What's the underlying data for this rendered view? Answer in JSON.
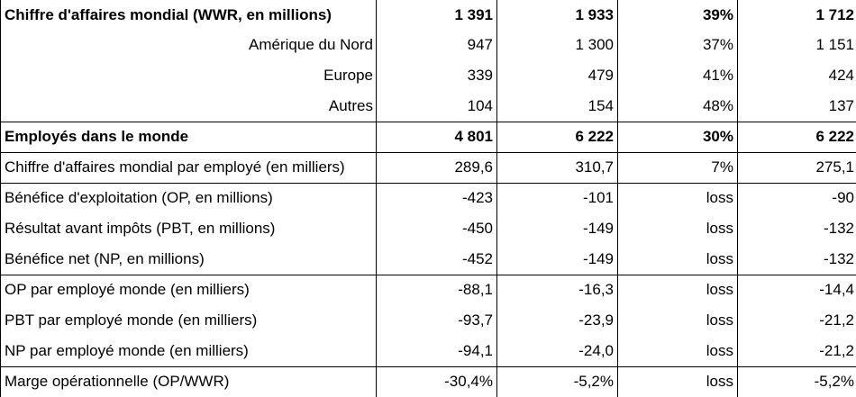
{
  "rows": [
    {
      "label": "Chiffre d'affaires mondial (WWR, en millions)",
      "v": [
        "1 391",
        "1 933",
        "39%",
        "1 712"
      ]
    },
    {
      "label": "Amérique du Nord",
      "v": [
        "947",
        "1 300",
        "37%",
        "1 151"
      ]
    },
    {
      "label": "Europe",
      "v": [
        "339",
        "479",
        "41%",
        "424"
      ]
    },
    {
      "label": "Autres",
      "v": [
        "104",
        "154",
        "48%",
        "137"
      ]
    },
    {
      "label": "Employés dans le monde",
      "v": [
        "4 801",
        "6 222",
        "30%",
        "6 222"
      ]
    },
    {
      "label": "Chiffre d'affaires mondial par employé (en milliers)",
      "v": [
        "289,6",
        "310,7",
        "7%",
        "275,1"
      ]
    },
    {
      "label": "Bénéfice d'exploitation (OP, en millions)",
      "v": [
        "-423",
        "-101",
        "loss",
        "-90"
      ]
    },
    {
      "label": "Résultat avant impôts (PBT, en millions)",
      "v": [
        "-450",
        "-149",
        "loss",
        "-132"
      ]
    },
    {
      "label": "Bénéfice net (NP, en millions)",
      "v": [
        "-452",
        "-149",
        "loss",
        "-132"
      ]
    },
    {
      "label": "OP par employé monde (en milliers)",
      "v": [
        "-88,1",
        "-16,3",
        "loss",
        "-14,4"
      ]
    },
    {
      "label": "PBT par employé monde (en milliers)",
      "v": [
        "-93,7",
        "-23,9",
        "loss",
        "-21,2"
      ]
    },
    {
      "label": "NP par employé monde (en milliers)",
      "v": [
        "-94,1",
        "-24,0",
        "loss",
        "-21,2"
      ]
    },
    {
      "label": "Marge opérationnelle (OP/WWR)",
      "v": [
        "-30,4%",
        "-5,2%",
        "loss",
        "-5,2%"
      ]
    }
  ]
}
